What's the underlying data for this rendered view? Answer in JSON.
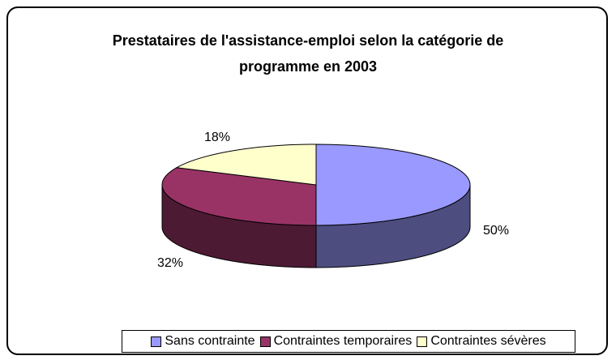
{
  "chart_data": {
    "type": "pie",
    "title": "Prestataires de l'assistance-emploi selon la catégorie de programme en 2003",
    "categories": [
      "Sans contrainte",
      "Contraintes temporaires",
      "Contraintes sévères"
    ],
    "values": [
      50,
      32,
      18
    ],
    "value_labels": [
      "50%",
      "32%",
      "18%"
    ],
    "colors": [
      "#9999ff",
      "#993366",
      "#ffffcc"
    ],
    "legend": "bottom"
  }
}
